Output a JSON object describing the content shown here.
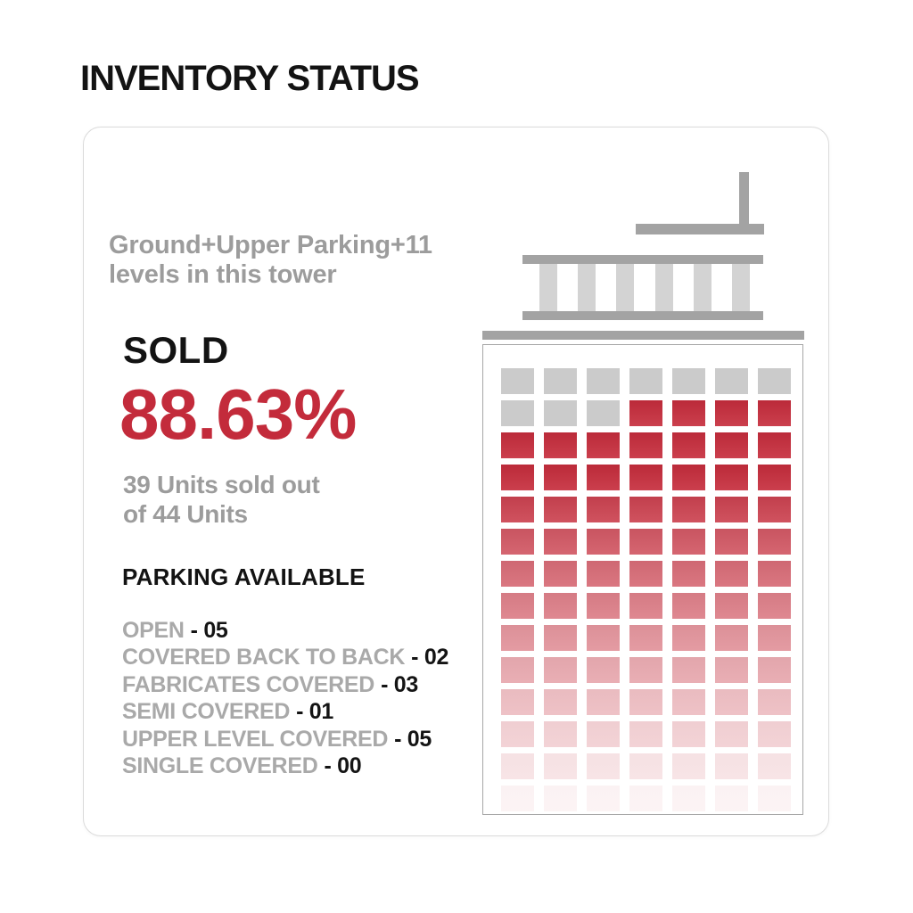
{
  "page": {
    "title": "INVENTORY STATUS"
  },
  "card": {
    "tower_info_line1": "Ground+Upper Parking+11",
    "tower_info_line2": "levels in this tower",
    "sold_label": "SOLD",
    "sold_percent": "88.63%",
    "units_line1": "39 Units sold out",
    "units_line2": "of 44 Units",
    "parking_heading": "PARKING AVAILABLE",
    "separator": "-",
    "parking": [
      {
        "label": "OPEN",
        "value": "05"
      },
      {
        "label": "COVERED BACK TO BACK",
        "value": "02"
      },
      {
        "label": "FABRICATES COVERED",
        "value": "03"
      },
      {
        "label": "SEMI COVERED",
        "value": "01"
      },
      {
        "label": "UPPER LEVEL COVERED",
        "value": "05"
      },
      {
        "label": "SINGLE COVERED",
        "value": "00"
      }
    ]
  },
  "building": {
    "colonnade_columns": 6,
    "grid_columns": 7,
    "grid_rows": [
      {
        "cells": [
          "gray",
          "gray",
          "gray",
          "gray",
          "gray",
          "gray",
          "gray"
        ]
      },
      {
        "cells": [
          "gray",
          "gray",
          "gray",
          "red",
          "red",
          "red",
          "red"
        ]
      },
      {
        "cells": [
          "red",
          "red",
          "red",
          "red",
          "red",
          "red",
          "red"
        ]
      },
      {
        "cells": [
          "red",
          "red",
          "red",
          "red",
          "red",
          "red",
          "red"
        ]
      },
      {
        "cells": [
          "red",
          "red",
          "red",
          "red",
          "red",
          "red",
          "red"
        ]
      },
      {
        "cells": [
          "red",
          "red",
          "red",
          "red",
          "red",
          "red",
          "red"
        ]
      },
      {
        "cells": [
          "red",
          "red",
          "red",
          "red",
          "red",
          "red",
          "red"
        ]
      },
      {
        "cells": [
          "red",
          "red",
          "red",
          "red",
          "red",
          "red",
          "red"
        ]
      },
      {
        "cells": [
          "red",
          "red",
          "red",
          "red",
          "red",
          "red",
          "red"
        ]
      },
      {
        "cells": [
          "red",
          "red",
          "red",
          "red",
          "red",
          "red",
          "red"
        ]
      },
      {
        "cells": [
          "red",
          "red",
          "red",
          "red",
          "red",
          "red",
          "red"
        ]
      },
      {
        "cells": [
          "red",
          "red",
          "red",
          "red",
          "red",
          "red",
          "red"
        ]
      },
      {
        "cells": [
          "red",
          "red",
          "red",
          "red",
          "red",
          "red",
          "red"
        ]
      },
      {
        "cells": [
          "red",
          "red",
          "red",
          "red",
          "red",
          "red",
          "red"
        ]
      }
    ]
  },
  "colors": {
    "red": "#C32B3B",
    "gray_square": "#CBCBCB",
    "bar_gray": "#A3A3A3",
    "column_gray": "#D3D3D3",
    "text_gray": "#9C9C9C",
    "parking_label_gray": "#A9A9A9",
    "text_black": "#141414",
    "card_border": "#DBDBDB",
    "tower_border": "#A6A6A6"
  },
  "chart_data": {
    "type": "waffle",
    "title": "INVENTORY STATUS",
    "sold_percent": 88.63,
    "units_sold": 39,
    "units_total": 44,
    "tower_note": "Ground+Upper Parking+11 levels in this tower",
    "grid": {
      "columns": 7,
      "rows": 14,
      "gray_cells": 10,
      "red_cells": 88,
      "gray_cell_positions": "row 1: all 7 columns; row 2: columns 1-3",
      "fade": "red cells fade progressively to white toward the bottom of the tower"
    },
    "parking_available": {
      "categories": [
        "OPEN",
        "COVERED BACK TO BACK",
        "FABRICATES COVERED",
        "SEMI COVERED",
        "UPPER LEVEL COVERED",
        "SINGLE COVERED"
      ],
      "values": [
        5,
        2,
        3,
        1,
        5,
        0
      ]
    }
  }
}
